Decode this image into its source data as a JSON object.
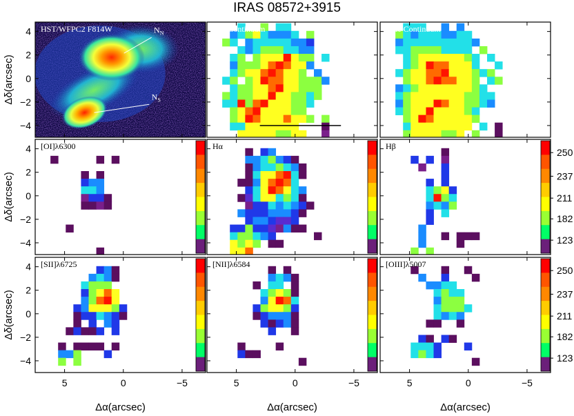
{
  "chart_data": {
    "type": "heatmap",
    "title": "IRAS 08572+3915",
    "xlabel": "Δα(arcsec)",
    "ylabel": "Δδ(arcsec)",
    "xlim": [
      7.5,
      -7.0
    ],
    "ylim": [
      -5.0,
      4.8
    ],
    "x_ticks": [
      5,
      0,
      -5
    ],
    "x_tick_labels": [
      "5",
      "0",
      "−5"
    ],
    "y_ticks": [
      4,
      2,
      0,
      -2,
      -4
    ],
    "y_tick_labels": [
      "4",
      "2",
      "0",
      "−2",
      "−4"
    ],
    "colorbar": {
      "tick_values": [
        250,
        237,
        211,
        182,
        123
      ],
      "tick_labels": [
        "250",
        "237",
        "211",
        "182",
        "123"
      ],
      "colors": [
        "#ff0000",
        "#ff5500",
        "#ff8800",
        "#ffcc00",
        "#ffff00",
        "#99ff33",
        "#00ff66",
        "#6b1f7a"
      ]
    },
    "grid": false,
    "panels": [
      {
        "label": "HST/WFPC2 F814W",
        "type": "image",
        "annotations": [
          {
            "text": "N",
            "subscript": "N",
            "x": -2.6,
            "y": 3.9
          },
          {
            "text": "N",
            "subscript": "S",
            "x": -2.4,
            "y": -1.8
          }
        ],
        "nuclei": [
          {
            "name": "NN",
            "x": 1.0,
            "y": 1.8
          },
          {
            "name": "NS",
            "x": 3.3,
            "y": -2.9
          }
        ]
      },
      {
        "label": "Red Continuum",
        "scale_bar_arcsec": 3.0,
        "grid": {
          "x0": 6.2,
          "y0": 4.7,
          "dx": 0.65,
          "dy": 0.65,
          "rows": [
            "..6..7.66.....",
            ".567865556.7..",
            "76.566666554..",
            "..6567776655..",
            ".67.78889877.6",
            ".57778999885..",
            ".6788999887.5.",
            "67.78999887775",
            ".677889988777.",
            "7677889887767.",
            "669799888776..",
            ".7899888877...",
            ".78998889887.7",
            ".668888888...1",
            "..888887788..2",
            "..............",
            "..............",
            "..............",
            ".......667...1",
            "........7.....",
            "........7....."
          ]
        }
      },
      {
        "label": "Blue Continuum",
        "grid": {
          "x0": 6.2,
          "y0": 4.7,
          "dx": 0.65,
          "dy": 0.65,
          "rows": [
            ".666..5.5.....",
            "7656665566....",
            "56666666665...",
            "6677776666.7..",
            ".6788888876.6.",
            ".6789998886..6",
            "6788999888767.",
            ".7889999887.67",
            "567888888876..",
            "6788888887766.",
            "5788899887765.",
            "67889888876...",
            ".7899888887...",
            ".688888888.6.1",
            ".78888778.7..1",
            "..77888.7....2",
            "..............",
            "..............",
            "..............",
            "..............",
            ".............."
          ]
        }
      },
      {
        "label": "[OI]λ6300",
        "grid": {
          "x0": 6.2,
          "y0": 4.7,
          "dx": 0.65,
          "dy": 0.65,
          "rows": [
            "..............",
            "..............",
            "1.....1.1.....",
            "..............",
            "....1.1.......",
            "....455.......",
            "....665.......",
            "....2441......",
            "....1121......",
            "..............",
            "..............",
            "..1...........",
            "..............",
            "..............",
            "......1.......",
            "..............",
            "..............",
            "..............",
            "..............",
            "..............",
            ".............."
          ]
        }
      },
      {
        "label": "Hα",
        "grid": {
          "x0": 6.2,
          "y0": 4.7,
          "dx": 0.65,
          "dy": 0.65,
          "rows": [
            "..............",
            "...1.45.......",
            "...5567541....",
            "...15667651...",
            "...16889961...",
            "..11589996....",
            "...46899865...",
            "..136886761...",
            "...244656541..",
            "..544455541...",
            "...4554334....",
            ".4474432511...",
            ".677654.....1.",
            ".8787.11......",
            ".889..........",
            "..............",
            "..............",
            "..............",
            "..............",
            "..............",
            ".............."
          ]
        }
      },
      {
        "label": "Hβ",
        "grid": {
          "x0": 6.2,
          "y0": 4.7,
          "dx": 0.65,
          "dy": 0.65,
          "rows": [
            "..............",
            "......1.......",
            "..4.4.2.......",
            "...2..4.......",
            "......4.......",
            "....4.4.......",
            "....6784......",
            "....6976......",
            "....5657......",
            "....4.6.......",
            "....4.........",
            "...5..........",
            "...5..1.111...",
            "...5....1.....",
            "..7.7.........",
            "..............",
            "..............",
            "..............",
            "..............",
            "..............",
            ".............."
          ]
        }
      },
      {
        "label": "[SII]λ6725",
        "grid": {
          "x0": 6.2,
          "y0": 4.7,
          "dx": 0.65,
          "dy": 0.65,
          "rows": [
            "..............",
            "......451.....",
            ".....5651.....",
            "....6777......",
            "....47898.....",
            "....57998.....",
            "...4588874....",
            "...1446541....",
            "...1.4.54.....",
            "..14114.4.....",
            "..............",
            ".1.1111.1.....",
            ".557...4......",
            ".7.7..........",
            "..............",
            "..............",
            "..............",
            "..............",
            "..............",
            "..............",
            ".............."
          ]
        }
      },
      {
        "label": "[NII]λ6584",
        "grid": {
          "x0": 6.2,
          "y0": 4.7,
          "dx": 0.65,
          "dy": 0.65,
          "rows": [
            "..............",
            "......1.1.....",
            "......5651....",
            "....1.66.1....",
            ".....67871....",
            ".....58996....",
            "....478874....",
            "....145551....",
            ".....41451....",
            "......4..1....",
            "..............",
            "..1....1......",
            "..411.........",
            "..........1...",
            "..............",
            "..............",
            "..............",
            "..............",
            "..............",
            "..............",
            ".............."
          ]
        }
      },
      {
        "label": "[OIII]λ5007",
        "grid": {
          "x0": 6.2,
          "y0": 4.7,
          "dx": 0.65,
          "dy": 0.65,
          "rows": [
            "..............",
            "..1...1..1....",
            "...5..4...1...",
            "....5566......",
            ".....6766.....",
            ".....5777.....",
            ".....67776....",
            ".....6565.....",
            "....11..1.....",
            "..............",
            "...41.41......",
            "..6664...4....",
            "..6764........",
            "..........1...",
            "..............",
            "..............",
            "..............",
            "..............",
            "..............",
            "..............",
            ".............."
          ]
        }
      }
    ]
  }
}
